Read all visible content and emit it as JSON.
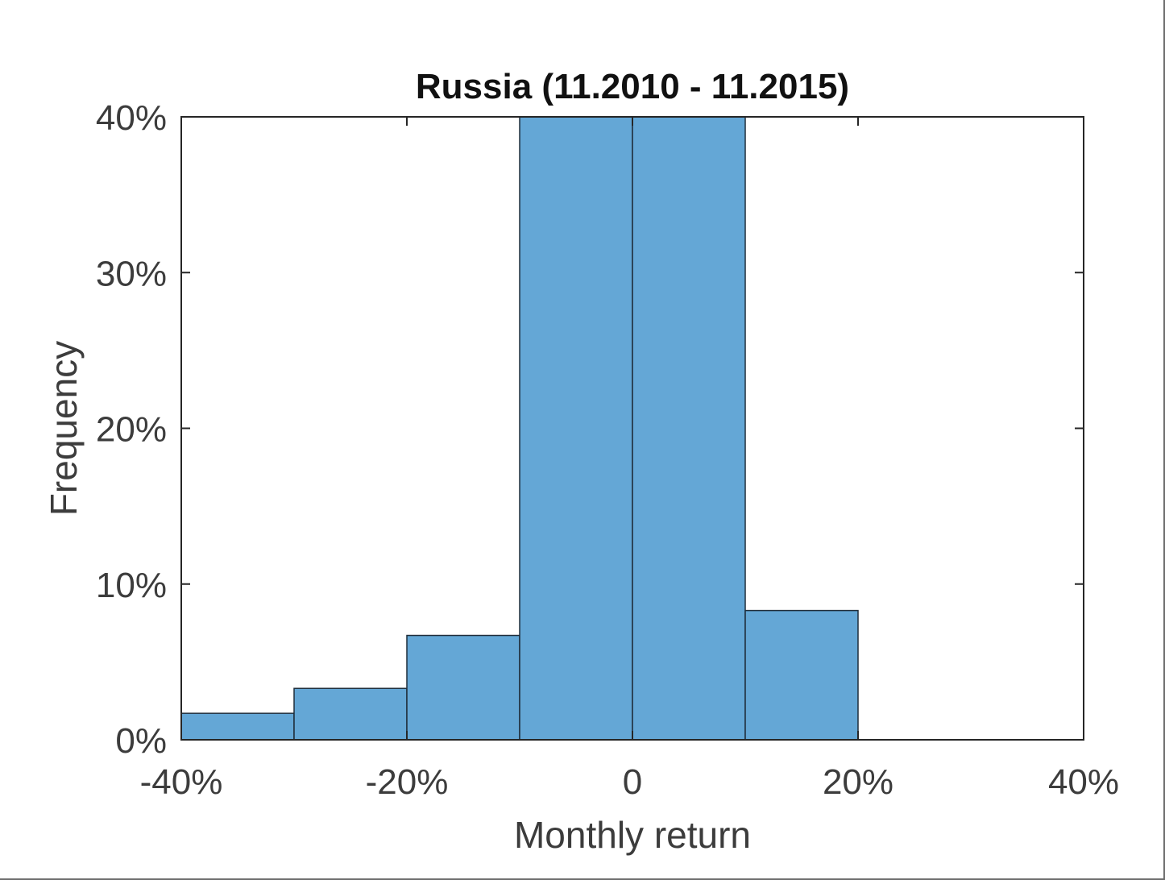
{
  "chart_data": {
    "type": "bar",
    "title": "Russia (11.2010 - 11.2015)",
    "xlabel": "Monthly return",
    "ylabel": "Frequency",
    "bins": [
      {
        "from": -40,
        "to": -30,
        "value": 1.7
      },
      {
        "from": -30,
        "to": -20,
        "value": 3.3
      },
      {
        "from": -20,
        "to": -10,
        "value": 6.7
      },
      {
        "from": -10,
        "to": 0,
        "value": 40
      },
      {
        "from": 0,
        "to": 10,
        "value": 40
      },
      {
        "from": 10,
        "to": 20,
        "value": 8.3
      },
      {
        "from": 20,
        "to": 30,
        "value": 0
      },
      {
        "from": 30,
        "to": 40,
        "value": 0
      }
    ],
    "xlim": [
      -40,
      40
    ],
    "ylim": [
      0,
      40
    ],
    "xticks": [
      -40,
      -20,
      0,
      20,
      40
    ],
    "xtick_labels": [
      "-40%",
      "-20%",
      "0",
      "20%",
      "40%"
    ],
    "yticks": [
      0,
      10,
      20,
      30,
      40
    ],
    "ytick_labels": [
      "0%",
      "10%",
      "20%",
      "30%",
      "40%"
    ],
    "bar_color": "#64a7d6",
    "edge_color": "#1f2d3a",
    "grid": false
  }
}
